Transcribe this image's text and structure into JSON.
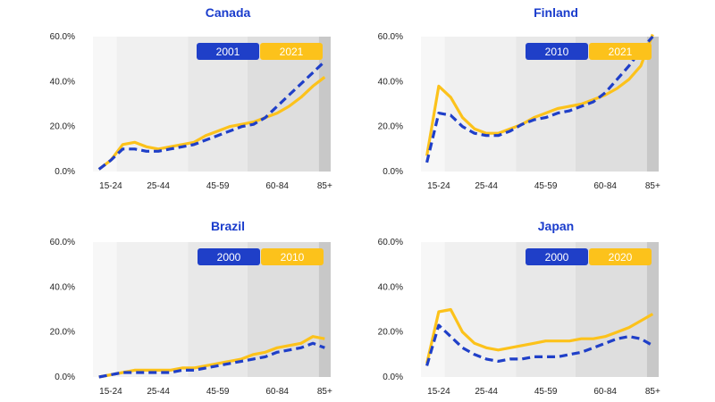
{
  "colors": {
    "series_a": "#1f3fc8",
    "series_b": "#fcc21b",
    "band_1": "#f7f7f7",
    "band_2": "#f0f0f0",
    "band_3": "#e8e8e8",
    "band_4": "#dedede",
    "band_5": "#c8c8c8",
    "title": "#1a3ccc"
  },
  "chart_data": [
    {
      "type": "line",
      "title": "Canada",
      "x": [
        0,
        1,
        2,
        3,
        4,
        5,
        6,
        7,
        8,
        9,
        10,
        11,
        12,
        13,
        14,
        15,
        16,
        17,
        18,
        19
      ],
      "x_tick_labels": [
        "15-24",
        "25-44",
        "45-59",
        "60-84",
        "85+"
      ],
      "x_tick_positions": [
        1,
        5,
        10,
        15,
        19
      ],
      "ylim": [
        0,
        0.6
      ],
      "y_ticks": [
        0,
        0.2,
        0.4,
        0.6
      ],
      "y_tick_labels": [
        "0.0%",
        "20.0%",
        "40.0%",
        "60.0%"
      ],
      "bands": [
        [
          -0.5,
          1.5
        ],
        [
          1.5,
          7.5
        ],
        [
          7.5,
          12.5
        ],
        [
          12.5,
          18.5
        ],
        [
          18.5,
          19.5
        ]
      ],
      "series": [
        {
          "name": "2001",
          "style": "dashed",
          "values": [
            0.01,
            0.05,
            0.1,
            0.1,
            0.09,
            0.09,
            0.1,
            0.11,
            0.12,
            0.14,
            0.16,
            0.18,
            0.2,
            0.21,
            0.24,
            0.29,
            0.34,
            0.39,
            0.44,
            0.49
          ]
        },
        {
          "name": "2021",
          "style": "solid",
          "values": [
            0.01,
            0.05,
            0.12,
            0.13,
            0.11,
            0.1,
            0.11,
            0.12,
            0.13,
            0.16,
            0.18,
            0.2,
            0.21,
            0.22,
            0.24,
            0.26,
            0.29,
            0.33,
            0.38,
            0.42
          ]
        }
      ]
    },
    {
      "type": "line",
      "title": "Finland",
      "x": [
        0,
        1,
        2,
        3,
        4,
        5,
        6,
        7,
        8,
        9,
        10,
        11,
        12,
        13,
        14,
        15,
        16,
        17,
        18,
        19
      ],
      "x_tick_labels": [
        "15-24",
        "25-44",
        "45-59",
        "60-84",
        "85+"
      ],
      "x_tick_positions": [
        1,
        5,
        10,
        15,
        19
      ],
      "ylim": [
        0,
        0.6
      ],
      "y_ticks": [
        0,
        0.2,
        0.4,
        0.6
      ],
      "y_tick_labels": [
        "0.0%",
        "20.0%",
        "40.0%",
        "60.0%"
      ],
      "bands": [
        [
          -0.5,
          1.5
        ],
        [
          1.5,
          7.5
        ],
        [
          7.5,
          12.5
        ],
        [
          12.5,
          18.5
        ],
        [
          18.5,
          19.5
        ]
      ],
      "series": [
        {
          "name": "2010",
          "style": "dashed",
          "values": [
            0.04,
            0.26,
            0.25,
            0.2,
            0.17,
            0.16,
            0.16,
            0.18,
            0.21,
            0.23,
            0.24,
            0.26,
            0.27,
            0.29,
            0.31,
            0.35,
            0.41,
            0.47,
            0.54,
            0.6
          ]
        },
        {
          "name": "2021",
          "style": "solid",
          "values": [
            0.07,
            0.38,
            0.33,
            0.24,
            0.19,
            0.17,
            0.17,
            0.19,
            0.21,
            0.24,
            0.26,
            0.28,
            0.29,
            0.3,
            0.32,
            0.34,
            0.37,
            0.41,
            0.47,
            0.61
          ]
        }
      ]
    },
    {
      "type": "line",
      "title": "Brazil",
      "x": [
        0,
        1,
        2,
        3,
        4,
        5,
        6,
        7,
        8,
        9,
        10,
        11,
        12,
        13,
        14,
        15,
        16,
        17,
        18,
        19
      ],
      "x_tick_labels": [
        "15-24",
        "25-44",
        "45-59",
        "60-84",
        "85+"
      ],
      "x_tick_positions": [
        1,
        5,
        10,
        15,
        19
      ],
      "ylim": [
        0,
        0.6
      ],
      "y_ticks": [
        0,
        0.2,
        0.4,
        0.6
      ],
      "y_tick_labels": [
        "0.0%",
        "20.0%",
        "40.0%",
        "60.0%"
      ],
      "bands": [
        [
          -0.5,
          1.5
        ],
        [
          1.5,
          7.5
        ],
        [
          7.5,
          12.5
        ],
        [
          12.5,
          18.5
        ],
        [
          18.5,
          19.5
        ]
      ],
      "series": [
        {
          "name": "2000",
          "style": "dashed",
          "values": [
            0.0,
            0.01,
            0.02,
            0.02,
            0.02,
            0.02,
            0.02,
            0.03,
            0.03,
            0.04,
            0.05,
            0.06,
            0.07,
            0.08,
            0.09,
            0.11,
            0.12,
            0.13,
            0.15,
            0.13
          ]
        },
        {
          "name": "2010",
          "style": "solid",
          "values": [
            0.0,
            0.01,
            0.02,
            0.03,
            0.03,
            0.03,
            0.03,
            0.04,
            0.04,
            0.05,
            0.06,
            0.07,
            0.08,
            0.1,
            0.11,
            0.13,
            0.14,
            0.15,
            0.18,
            0.17
          ]
        }
      ]
    },
    {
      "type": "line",
      "title": "Japan",
      "x": [
        0,
        1,
        2,
        3,
        4,
        5,
        6,
        7,
        8,
        9,
        10,
        11,
        12,
        13,
        14,
        15,
        16,
        17,
        18,
        19
      ],
      "x_tick_labels": [
        "15-24",
        "25-44",
        "45-59",
        "60-84",
        "85+"
      ],
      "x_tick_positions": [
        1,
        5,
        10,
        15,
        19
      ],
      "ylim": [
        0,
        0.6
      ],
      "y_ticks": [
        0,
        0.2,
        0.4,
        0.6
      ],
      "y_tick_labels": [
        "0.0%",
        "20.0%",
        "40.0%",
        "60.0%"
      ],
      "bands": [
        [
          -0.5,
          1.5
        ],
        [
          1.5,
          7.5
        ],
        [
          7.5,
          12.5
        ],
        [
          12.5,
          18.5
        ],
        [
          18.5,
          19.5
        ]
      ],
      "series": [
        {
          "name": "2000",
          "style": "dashed",
          "values": [
            0.05,
            0.23,
            0.18,
            0.13,
            0.1,
            0.08,
            0.07,
            0.08,
            0.08,
            0.09,
            0.09,
            0.09,
            0.1,
            0.11,
            0.13,
            0.15,
            0.17,
            0.18,
            0.17,
            0.14
          ]
        },
        {
          "name": "2020",
          "style": "solid",
          "values": [
            0.06,
            0.29,
            0.3,
            0.2,
            0.15,
            0.13,
            0.12,
            0.13,
            0.14,
            0.15,
            0.16,
            0.16,
            0.16,
            0.17,
            0.17,
            0.18,
            0.2,
            0.22,
            0.25,
            0.28
          ]
        }
      ]
    }
  ]
}
